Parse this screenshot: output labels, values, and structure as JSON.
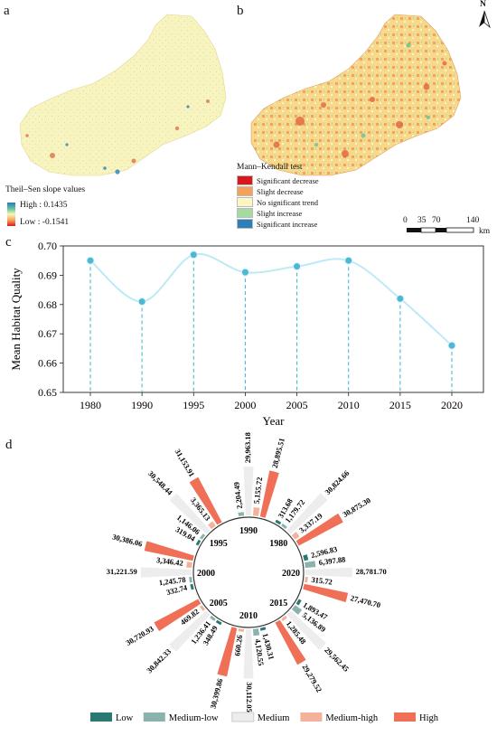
{
  "panels": {
    "a": "a",
    "b": "b",
    "c": "c",
    "d": "d"
  },
  "map_a": {
    "legend_title": "Theil–Sen slope values",
    "high_label": "High : 0.1435",
    "low_label": "Low : -0.1541",
    "gradient": [
      "#2b7bba",
      "#5cc19a",
      "#f7f7b6",
      "#f7a35c",
      "#d7191c"
    ]
  },
  "map_b": {
    "legend_title": "Mann–Kendall test",
    "items": [
      {
        "label": "Significant decrease",
        "color": "#d7191c"
      },
      {
        "label": "Slight decrease",
        "color": "#f4a259"
      },
      {
        "label": "No significant trend",
        "color": "#fbf6c2"
      },
      {
        "label": "Slight increase",
        "color": "#a6dba0"
      },
      {
        "label": "Significant increase",
        "color": "#2c7fb8"
      }
    ],
    "north": "N",
    "scale_ticks": [
      "0",
      "35",
      "70",
      "140"
    ],
    "scale_unit": "km"
  },
  "chart_data": [
    {
      "type": "line",
      "x": [
        1980,
        1990,
        1995,
        2000,
        2005,
        2010,
        2015,
        2020
      ],
      "values": [
        0.695,
        0.681,
        0.697,
        0.691,
        0.693,
        0.695,
        0.682,
        0.666
      ],
      "xlabel": "Year",
      "ylabel": "Mean Habitat Quality",
      "ylim": [
        0.65,
        0.7
      ],
      "yticks": [
        "0.65",
        "0.66",
        "0.67",
        "0.68",
        "0.69",
        "0.70"
      ],
      "xticks": [
        "1980",
        "1990",
        "1995",
        "2000",
        "2005",
        "2010",
        "2015",
        "2020"
      ],
      "line_color": "#bdeaf5",
      "point_color": "#4cb8d4",
      "drop_color": "#4cb8d4"
    },
    {
      "type": "bar",
      "subtype": "radial",
      "categories": [
        "Low",
        "Medium-low",
        "Medium",
        "Medium-high",
        "High"
      ],
      "colors": [
        "#2a7a72",
        "#8bb3ae",
        "#ededed",
        "#f4b19c",
        "#ef6f57"
      ],
      "groups": [
        {
          "year": "1990",
          "values": [
            null,
            2204.49,
            29963.18,
            5155.72,
            28895.51
          ]
        },
        {
          "year": "1980",
          "values": [
            313.68,
            1179.72,
            30824.66,
            3337.19,
            30875.3
          ]
        },
        {
          "year": "2020",
          "values": [
            2596.83,
            6397.88,
            28781.7,
            315.72,
            27470.7
          ]
        },
        {
          "year": "2015",
          "values": [
            1893.47,
            5136.89,
            29562.45,
            1285.48,
            29279.52
          ]
        },
        {
          "year": "2010",
          "values": [
            1430.31,
            4120.55,
            30112.05,
            660.26,
            30399.86
          ]
        },
        {
          "year": "2005",
          "values": [
            348.49,
            1236.41,
            30842.33,
            469.82,
            30720.93
          ]
        },
        {
          "year": "2000",
          "values": [
            332.74,
            1245.78,
            31221.59,
            3346.42,
            30386.06
          ]
        },
        {
          "year": "1995",
          "values": [
            319.04,
            1146.06,
            30548.44,
            3365.13,
            31153.91
          ]
        }
      ]
    }
  ]
}
